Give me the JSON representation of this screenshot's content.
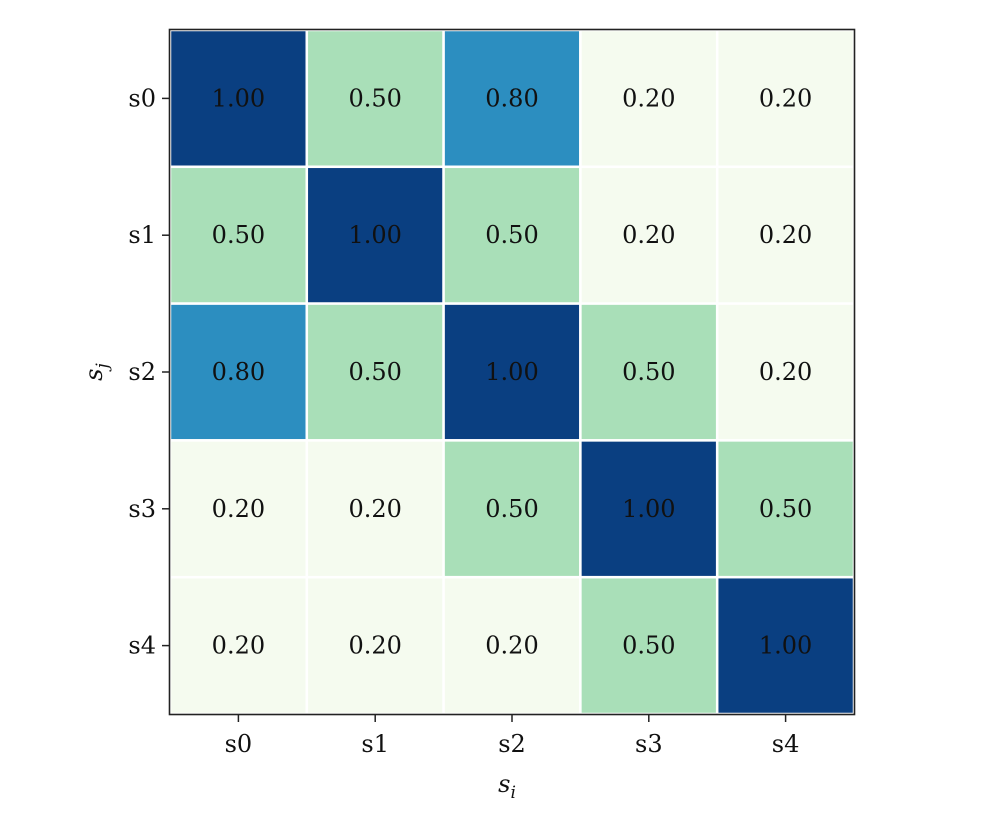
{
  "chart_data": {
    "type": "heatmap",
    "x_categories": [
      "s0",
      "s1",
      "s2",
      "s3",
      "s4"
    ],
    "y_categories": [
      "s0",
      "s1",
      "s2",
      "s3",
      "s4"
    ],
    "values": [
      [
        1.0,
        0.5,
        0.8,
        0.2,
        0.2
      ],
      [
        0.5,
        1.0,
        0.5,
        0.2,
        0.2
      ],
      [
        0.8,
        0.5,
        1.0,
        0.5,
        0.2
      ],
      [
        0.2,
        0.2,
        0.5,
        1.0,
        0.5
      ],
      [
        0.2,
        0.2,
        0.2,
        0.5,
        1.0
      ]
    ],
    "cell_labels": [
      [
        "1.00",
        "0.50",
        "0.80",
        "0.20",
        "0.20"
      ],
      [
        "0.50",
        "1.00",
        "0.50",
        "0.20",
        "0.20"
      ],
      [
        "0.80",
        "0.50",
        "1.00",
        "0.50",
        "0.20"
      ],
      [
        "0.20",
        "0.20",
        "0.50",
        "1.00",
        "0.50"
      ],
      [
        "0.20",
        "0.20",
        "0.20",
        "0.50",
        "1.00"
      ]
    ],
    "xlabel": "s",
    "xlabel_sub": "i",
    "ylabel": "s",
    "ylabel_sub": "j",
    "colormap": "GnBu",
    "value_colors": {
      "0.2": "#f5fbef",
      "0.5": "#a9dfb8",
      "0.8": "#2c8ec0",
      "1.0": "#0a3f81"
    },
    "gridlines": "white"
  }
}
